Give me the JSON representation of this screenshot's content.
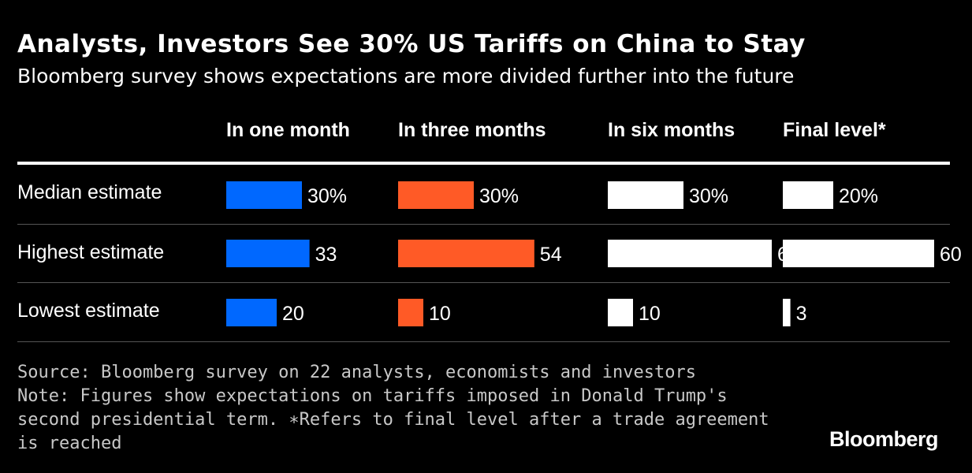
{
  "title": "Analysts, Investors See 30% US Tariffs on China to Stay",
  "subtitle": "Bloomberg survey shows expectations are more divided further into the future",
  "footer": {
    "lines": [
      "Source: Bloomberg survey on 22 analysts, economists and investors",
      "Note: Figures show expectations on tariffs imposed in Donald Trump's",
      "second presidential term. ∗Refers to final level after a trade agreement",
      "is reached"
    ]
  },
  "logo": "Bloomberg",
  "chart_data": {
    "type": "bar",
    "orientation": "horizontal",
    "layout": "small-multiples table",
    "columns": [
      "In one month",
      "In three months",
      "In six months",
      "Final level*"
    ],
    "rows": [
      "Median estimate",
      "Highest estimate",
      "Lowest estimate"
    ],
    "column_colors": [
      "#0068ff",
      "#ff5a26",
      "#ffffff",
      "#ffffff"
    ],
    "series": [
      {
        "column": "In one month",
        "values": [
          30,
          33,
          20
        ],
        "labels": [
          "30%",
          "33",
          "20"
        ]
      },
      {
        "column": "In three months",
        "values": [
          30,
          54,
          10
        ],
        "labels": [
          "30%",
          "54",
          "10"
        ]
      },
      {
        "column": "In six months",
        "values": [
          30,
          65,
          10
        ],
        "labels": [
          "30%",
          "65",
          "10"
        ]
      },
      {
        "column": "Final level*",
        "values": [
          20,
          60,
          3
        ],
        "labels": [
          "20%",
          "60",
          "3"
        ]
      }
    ],
    "xlim": [
      0,
      65
    ],
    "grid": false,
    "legend": "none"
  }
}
